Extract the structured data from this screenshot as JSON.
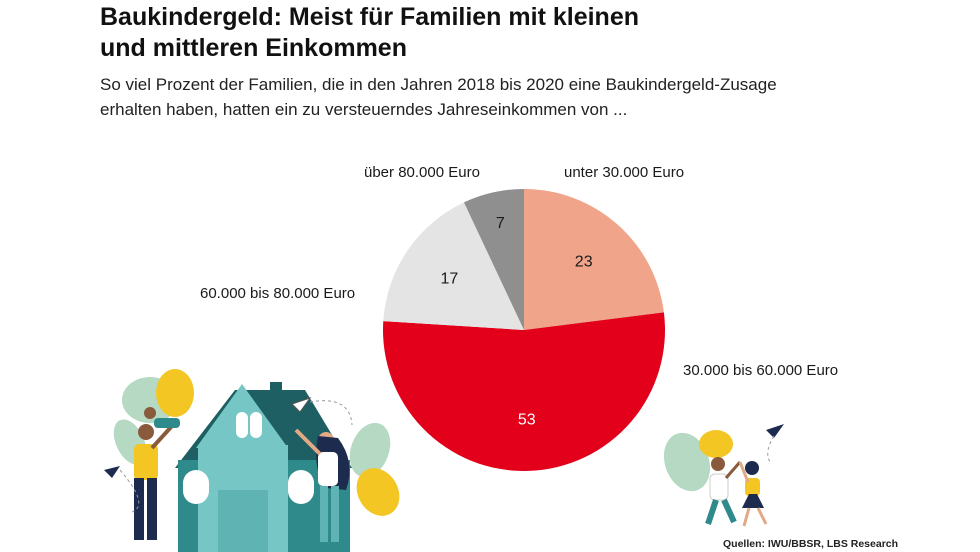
{
  "title_line1": "Baukindergeld: Meist für Familien mit kleinen",
  "title_line2": "und mittleren Einkommen",
  "subtitle_line1": "So viel Prozent der Familien, die in den Jahren 2018 bis 2020 eine Baukindergeld-Zusage",
  "subtitle_line2": "erhalten haben, hatten ein zu versteuerndes Jahreseinkommen von ...",
  "source": "Quellen: IWU/BBSR, LBS Research",
  "chart_data": {
    "type": "pie",
    "title": "Baukindergeld: Meist für Familien mit kleinen und mittleren Einkommen",
    "start": "12 o'clock",
    "direction": "clockwise",
    "slices": [
      {
        "label": "unter 30.000 Euro",
        "value": 23,
        "color": "#f0a58a",
        "value_text_color": "#1a1a1a"
      },
      {
        "label": "30.000 bis 60.000 Euro",
        "value": 53,
        "color": "#e2001a",
        "value_text_color": "#ffffff"
      },
      {
        "label": "60.000 bis 80.000 Euro",
        "value": 17,
        "color": "#e4e4e4",
        "value_text_color": "#1a1a1a"
      },
      {
        "label": "über 80.000 Euro",
        "value": 7,
        "color": "#8f8f8f",
        "value_text_color": "#1a1a1a"
      }
    ]
  },
  "colors": {
    "red": "#e2001a",
    "salmon": "#f0a58a",
    "light_gray": "#e4e4e4",
    "dark_gray": "#8f8f8f",
    "teal": "#2f8a8c",
    "teal_light": "#76c6c6",
    "yellow": "#f3c623",
    "leaf_green": "#b5d9c3",
    "navy": "#1d2b4f"
  },
  "illustrations": [
    "family-house-illustration",
    "children-playing-illustration"
  ]
}
